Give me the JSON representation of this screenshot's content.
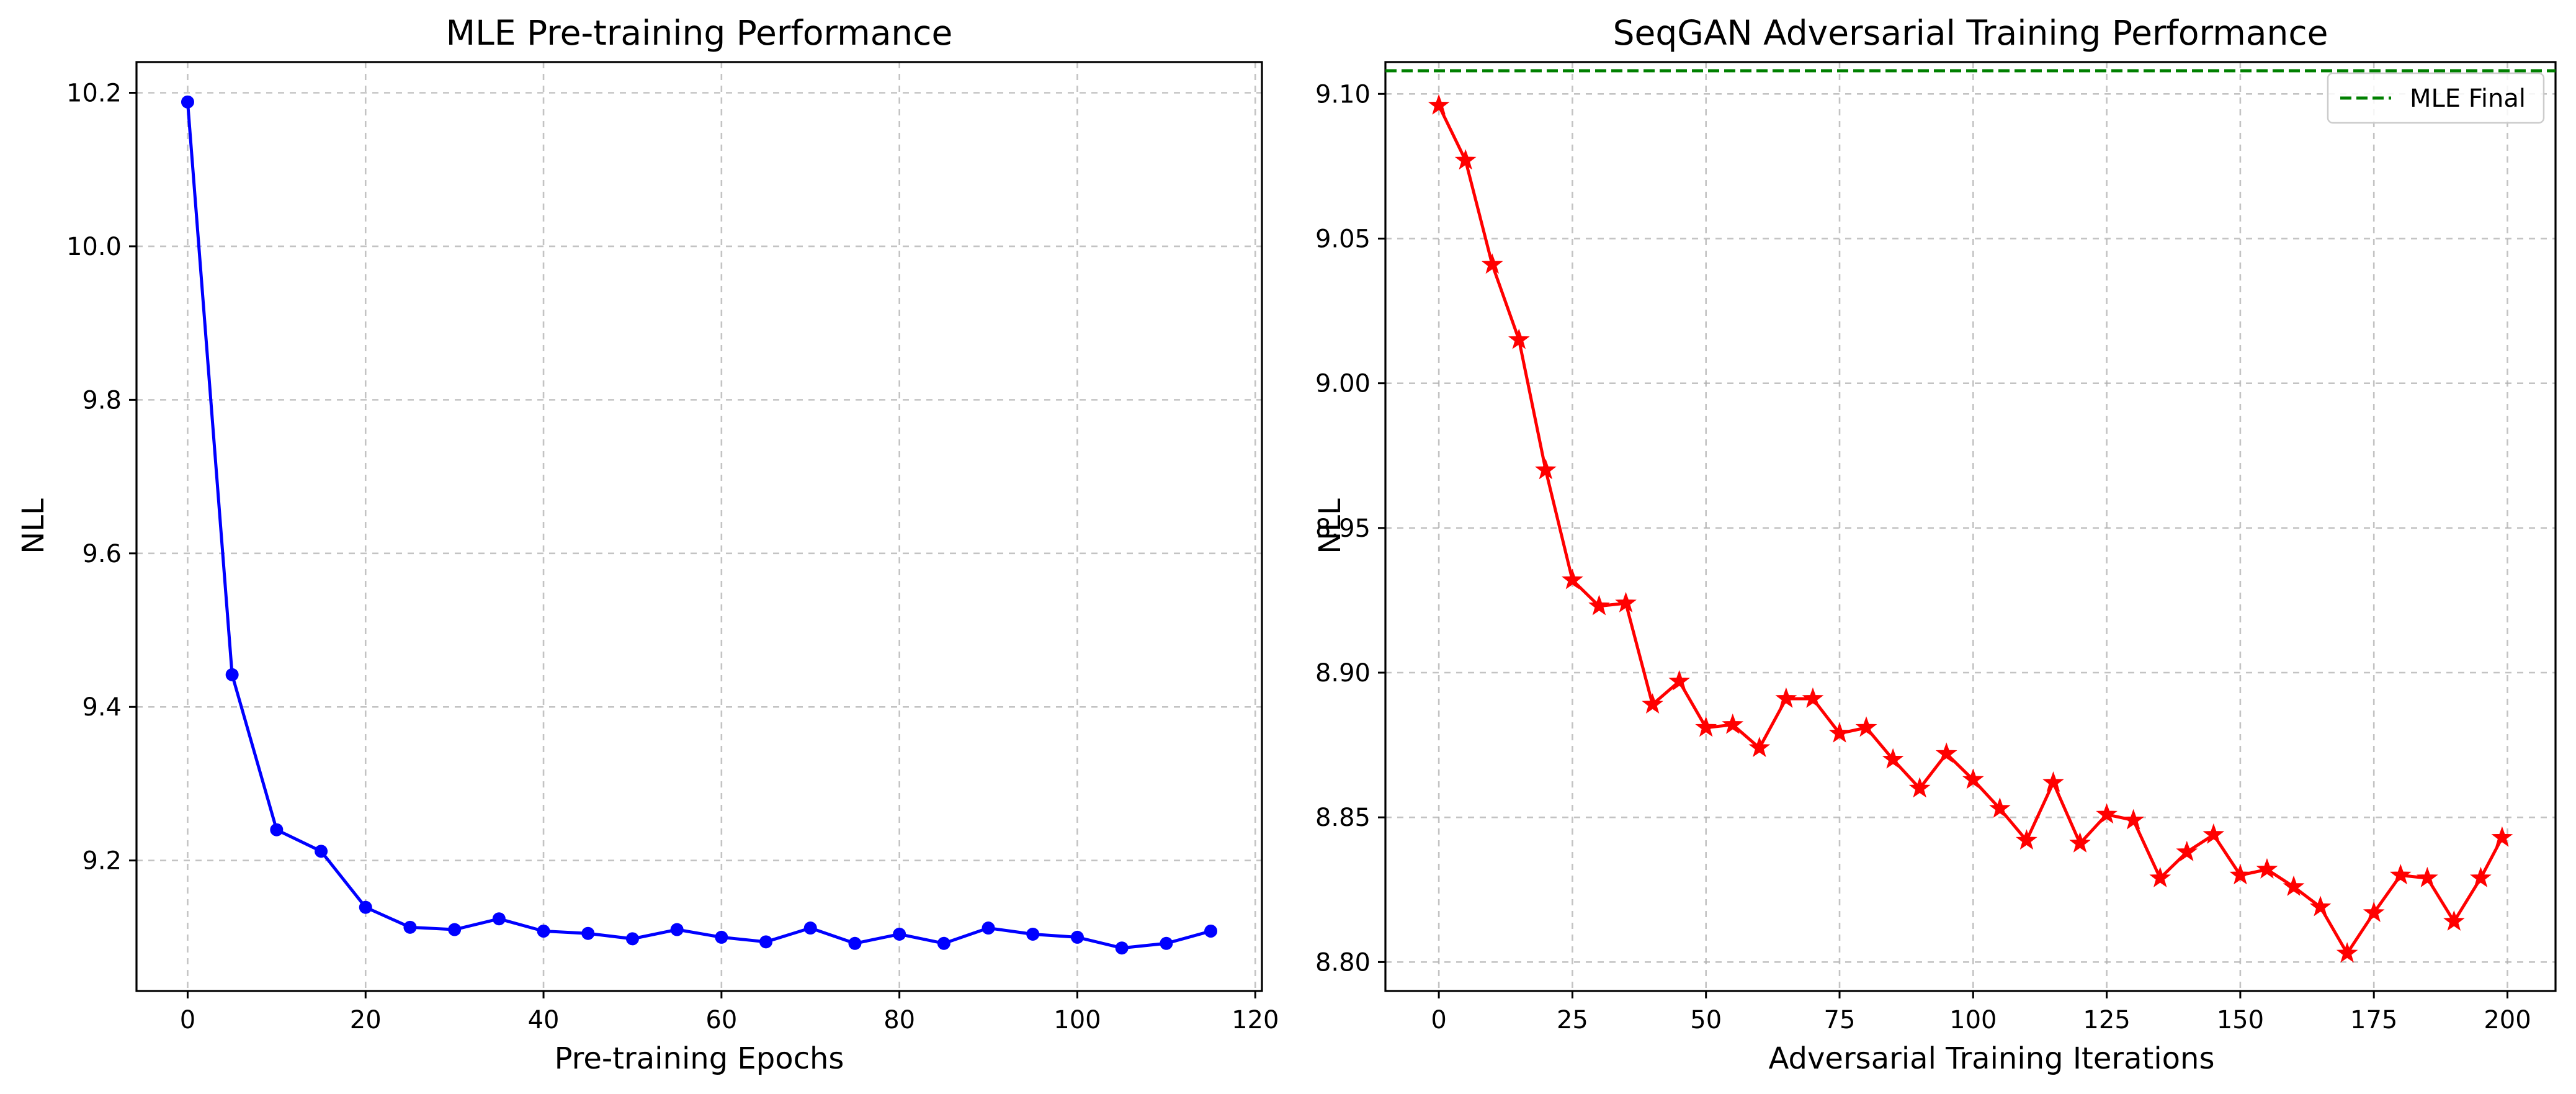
{
  "chart_data": [
    {
      "type": "line",
      "title": "MLE Pre-training Performance",
      "xlabel": "Pre-training Epochs",
      "ylabel": "NLL",
      "xlim": [
        -5.75,
        120.75
      ],
      "ylim": [
        9.03,
        10.24
      ],
      "xticks": [
        0,
        20,
        40,
        60,
        80,
        100,
        120
      ],
      "xtick_labels": [
        "0",
        "20",
        "40",
        "60",
        "80",
        "100",
        "120"
      ],
      "yticks": [
        9.2,
        9.4,
        9.6,
        9.8,
        10.0,
        10.2
      ],
      "ytick_labels": [
        "9.2",
        "9.4",
        "9.6",
        "9.8",
        "10.0",
        "10.2"
      ],
      "grid": true,
      "series": [
        {
          "color": "#0000ff",
          "marker": "circle",
          "x": [
            0,
            5,
            10,
            15,
            20,
            25,
            30,
            35,
            40,
            45,
            50,
            55,
            60,
            65,
            70,
            75,
            80,
            85,
            90,
            95,
            100,
            105,
            110,
            115
          ],
          "y": [
            10.188,
            9.442,
            9.24,
            9.212,
            9.139,
            9.113,
            9.11,
            9.124,
            9.108,
            9.105,
            9.098,
            9.11,
            9.1,
            9.094,
            9.112,
            9.092,
            9.104,
            9.092,
            9.112,
            9.104,
            9.1,
            9.086,
            9.092,
            9.108
          ]
        }
      ]
    },
    {
      "type": "line",
      "title": "SeqGAN Adversarial Training Performance",
      "xlabel": "Adversarial Training Iterations",
      "ylabel": "NLL",
      "xlim": [
        -10,
        209
      ],
      "ylim": [
        8.79,
        9.111
      ],
      "xticks": [
        0,
        25,
        50,
        75,
        100,
        125,
        150,
        175,
        200
      ],
      "xtick_labels": [
        "0",
        "25",
        "50",
        "75",
        "100",
        "125",
        "150",
        "175",
        "200"
      ],
      "yticks": [
        8.8,
        8.85,
        8.9,
        8.95,
        9.0,
        9.05,
        9.1
      ],
      "ytick_labels": [
        "8.80",
        "8.85",
        "8.90",
        "8.95",
        "9.00",
        "9.05",
        "9.10"
      ],
      "grid": true,
      "legend": {
        "position": "top-right",
        "entries": [
          "MLE Final"
        ]
      },
      "reference_line": {
        "name": "MLE Final",
        "y": 9.108,
        "color": "#008000",
        "style": "dashed"
      },
      "series": [
        {
          "color": "#ff0000",
          "marker": "star",
          "x": [
            0,
            5,
            10,
            15,
            20,
            25,
            30,
            35,
            40,
            45,
            50,
            55,
            60,
            65,
            70,
            75,
            80,
            85,
            90,
            95,
            100,
            105,
            110,
            115,
            120,
            125,
            130,
            135,
            140,
            145,
            150,
            155,
            160,
            165,
            170,
            175,
            180,
            185,
            190,
            195,
            199
          ],
          "y": [
            9.096,
            9.077,
            9.041,
            9.015,
            8.97,
            8.932,
            8.923,
            8.924,
            8.889,
            8.897,
            8.881,
            8.882,
            8.874,
            8.891,
            8.891,
            8.879,
            8.881,
            8.87,
            8.86,
            8.872,
            8.863,
            8.853,
            8.842,
            8.862,
            8.841,
            8.851,
            8.849,
            8.829,
            8.838,
            8.844,
            8.83,
            8.832,
            8.826,
            8.819,
            8.803,
            8.817,
            8.83,
            8.829,
            8.814,
            8.829,
            8.843
          ]
        }
      ]
    }
  ]
}
